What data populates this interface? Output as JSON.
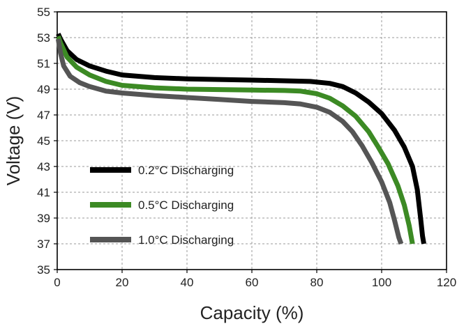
{
  "chart_data": {
    "type": "line",
    "title": "",
    "xlabel": "Capacity (%)",
    "ylabel": "Voltage (V)",
    "xlim": [
      0,
      120
    ],
    "ylim": [
      35,
      55
    ],
    "xticks": [
      0,
      20,
      40,
      60,
      80,
      100,
      120
    ],
    "yticks": [
      35,
      37,
      39,
      41,
      43,
      45,
      47,
      49,
      51,
      53,
      55
    ],
    "grid": true,
    "legend_position": "lower-left",
    "series": [
      {
        "name": "0.2°C Discharging",
        "color": "#000000",
        "points": [
          [
            0.3,
            53.3
          ],
          [
            1,
            52.9
          ],
          [
            3,
            52.0
          ],
          [
            6,
            51.3
          ],
          [
            10,
            50.8
          ],
          [
            15,
            50.4
          ],
          [
            20,
            50.1
          ],
          [
            30,
            49.9
          ],
          [
            40,
            49.8
          ],
          [
            50,
            49.75
          ],
          [
            60,
            49.7
          ],
          [
            70,
            49.65
          ],
          [
            78,
            49.6
          ],
          [
            84,
            49.45
          ],
          [
            88,
            49.2
          ],
          [
            92,
            48.7
          ],
          [
            96,
            48.0
          ],
          [
            100,
            47.1
          ],
          [
            104,
            45.8
          ],
          [
            107,
            44.5
          ],
          [
            109.5,
            43.0
          ],
          [
            111,
            41.2
          ],
          [
            112,
            39.0
          ],
          [
            112.6,
            37.6
          ],
          [
            113,
            37.0
          ]
        ]
      },
      {
        "name": "0.5°C Discharging",
        "color": "#3c8a24",
        "points": [
          [
            0.3,
            53.1
          ],
          [
            1,
            52.6
          ],
          [
            3,
            51.5
          ],
          [
            6,
            50.7
          ],
          [
            10,
            50.1
          ],
          [
            15,
            49.6
          ],
          [
            20,
            49.3
          ],
          [
            30,
            49.1
          ],
          [
            40,
            49.0
          ],
          [
            50,
            48.97
          ],
          [
            60,
            48.93
          ],
          [
            70,
            48.9
          ],
          [
            75,
            48.85
          ],
          [
            80,
            48.65
          ],
          [
            84,
            48.3
          ],
          [
            88,
            47.7
          ],
          [
            92,
            46.9
          ],
          [
            96,
            45.7
          ],
          [
            99,
            44.5
          ],
          [
            102,
            43.2
          ],
          [
            105,
            41.5
          ],
          [
            107,
            40.0
          ],
          [
            108.5,
            38.4
          ],
          [
            109.5,
            37.0
          ]
        ]
      },
      {
        "name": "1.0°C Discharging",
        "color": "#555555",
        "points": [
          [
            0.3,
            52.9
          ],
          [
            1,
            51.8
          ],
          [
            2,
            50.8
          ],
          [
            4,
            50.0
          ],
          [
            7,
            49.5
          ],
          [
            10,
            49.2
          ],
          [
            15,
            48.85
          ],
          [
            20,
            48.7
          ],
          [
            30,
            48.5
          ],
          [
            40,
            48.35
          ],
          [
            50,
            48.2
          ],
          [
            60,
            48.05
          ],
          [
            70,
            47.95
          ],
          [
            75,
            47.85
          ],
          [
            80,
            47.6
          ],
          [
            84,
            47.2
          ],
          [
            88,
            46.5
          ],
          [
            91,
            45.7
          ],
          [
            94,
            44.6
          ],
          [
            97,
            43.3
          ],
          [
            100,
            41.8
          ],
          [
            102.5,
            40.2
          ],
          [
            104,
            38.8
          ],
          [
            105.3,
            37.5
          ],
          [
            106,
            37.0
          ]
        ]
      }
    ]
  }
}
